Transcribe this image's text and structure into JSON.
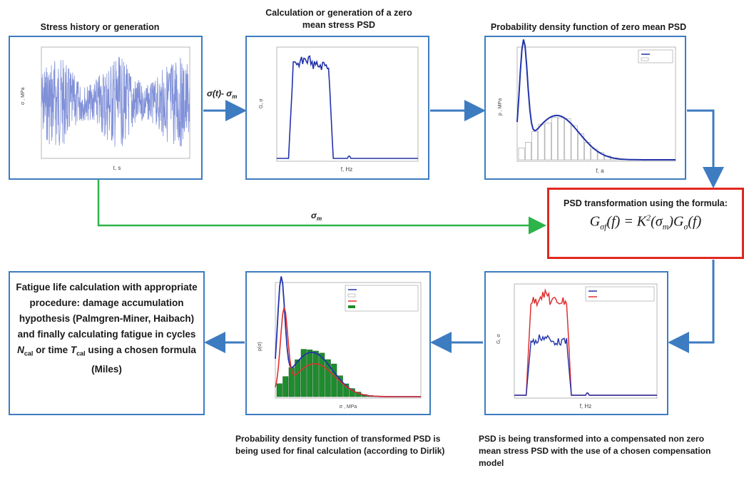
{
  "labels": {
    "stress_history": "Stress history or generation",
    "zero_mean_psd": "Calculation or generation of a zero mean stress PSD",
    "pdf_zero_mean": "Probability density function of zero mean PSD",
    "pdf_transformed": "Probability density function of transformed PSD is being used for final calculation (according to Dirlik)",
    "psd_transformed": "PSD is being transformed into a compensated non zero mean stress PSD with the use of a chosen compensation model"
  },
  "arrows": {
    "sigma_minus": "σ(t)- σ",
    "sigma_minus_sub": "m",
    "sigma_m": "σ",
    "sigma_m_sub": "m"
  },
  "formula_box": {
    "title": "PSD transformation using the formula:",
    "formula_lhs": "G",
    "formula_text": "(f) = K²(σm)Gσ(f)"
  },
  "fatigue_box": {
    "line1": "Fatigue life calculation with appropriate procedure: damage accumulation hypothesis (Palmgren-Miner, Haibach) and finally calculating fatigue in cycles",
    "n_cal": "N",
    "n_cal_sub": "cal",
    "or_time": " or time ",
    "t_cal": "T",
    "t_cal_sub": "cal",
    "line2": " using a chosen formula (Miles)"
  },
  "colors": {
    "box_border": "#3d7cc0",
    "arrow_blue": "#3d7cc0",
    "arrow_green": "#2db34a",
    "formula_border": "#e0281f",
    "plot_blue": "#2233aa",
    "plot_red": "#e03030",
    "bars_green": "#1e8c2e"
  }
}
